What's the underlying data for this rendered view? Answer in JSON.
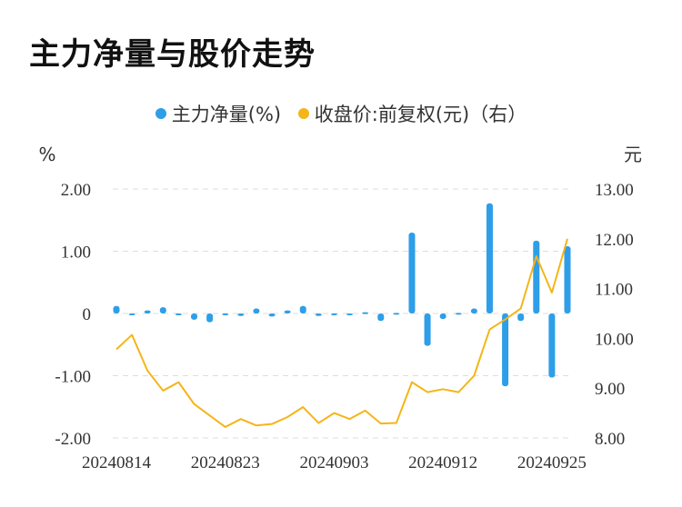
{
  "title": "主力净量与股价走势",
  "colors": {
    "bar": "#2e9ee8",
    "line": "#f5b518",
    "grid": "#dddddd"
  },
  "chart_data": {
    "type": "bar",
    "legend_position": "top-center",
    "grid": true,
    "series": [
      {
        "name": "主力净量(%)",
        "type": "bar",
        "axis": "left"
      },
      {
        "name": "收盘价:前复权(元)（右）",
        "type": "line",
        "axis": "right"
      }
    ],
    "y_left": {
      "unit": "%",
      "ylim": [
        -2.0,
        2.0
      ],
      "ticks": [
        "2.00",
        "1.00",
        "0",
        "-1.00",
        "-2.00"
      ],
      "tick_values": [
        2,
        1,
        0,
        -1,
        -2
      ]
    },
    "y_right": {
      "unit": "元",
      "ylim": [
        8.0,
        13.0
      ],
      "ticks": [
        "13.00",
        "12.00",
        "11.00",
        "10.00",
        "9.00",
        "8.00"
      ],
      "tick_values": [
        13,
        12,
        11,
        10,
        9,
        8
      ]
    },
    "x_tick_labels": [
      "20240814",
      "20240823",
      "20240903",
      "20240912",
      "20240925"
    ],
    "x_tick_indices": [
      0,
      7,
      14,
      21,
      28
    ],
    "dates": [
      "20240814",
      "20240815",
      "20240816",
      "20240819",
      "20240820",
      "20240821",
      "20240822",
      "20240823",
      "20240826",
      "20240827",
      "20240828",
      "20240829",
      "20240830",
      "20240902",
      "20240903",
      "20240904",
      "20240905",
      "20240906",
      "20240909",
      "20240910",
      "20240911",
      "20240912",
      "20240913",
      "20240918",
      "20240919",
      "20240920",
      "20240923",
      "20240924",
      "20240925",
      "20240926"
    ],
    "net_volume": [
      0.12,
      -0.02,
      0.05,
      0.1,
      -0.02,
      -0.1,
      -0.14,
      -0.03,
      -0.04,
      0.08,
      -0.05,
      0.05,
      0.12,
      -0.04,
      -0.02,
      -0.01,
      0.02,
      -0.12,
      0.01,
      1.3,
      -0.52,
      -0.09,
      0.01,
      0.08,
      1.77,
      -1.17,
      -0.12,
      1.17,
      -1.03,
      1.08
    ],
    "close_price": [
      9.78,
      10.07,
      9.35,
      8.95,
      9.12,
      8.68,
      8.45,
      8.22,
      8.38,
      8.25,
      8.28,
      8.42,
      8.62,
      8.3,
      8.5,
      8.38,
      8.55,
      8.29,
      8.3,
      9.12,
      8.92,
      8.98,
      8.92,
      9.25,
      10.18,
      10.38,
      10.6,
      11.65,
      10.92,
      12.0
    ]
  }
}
